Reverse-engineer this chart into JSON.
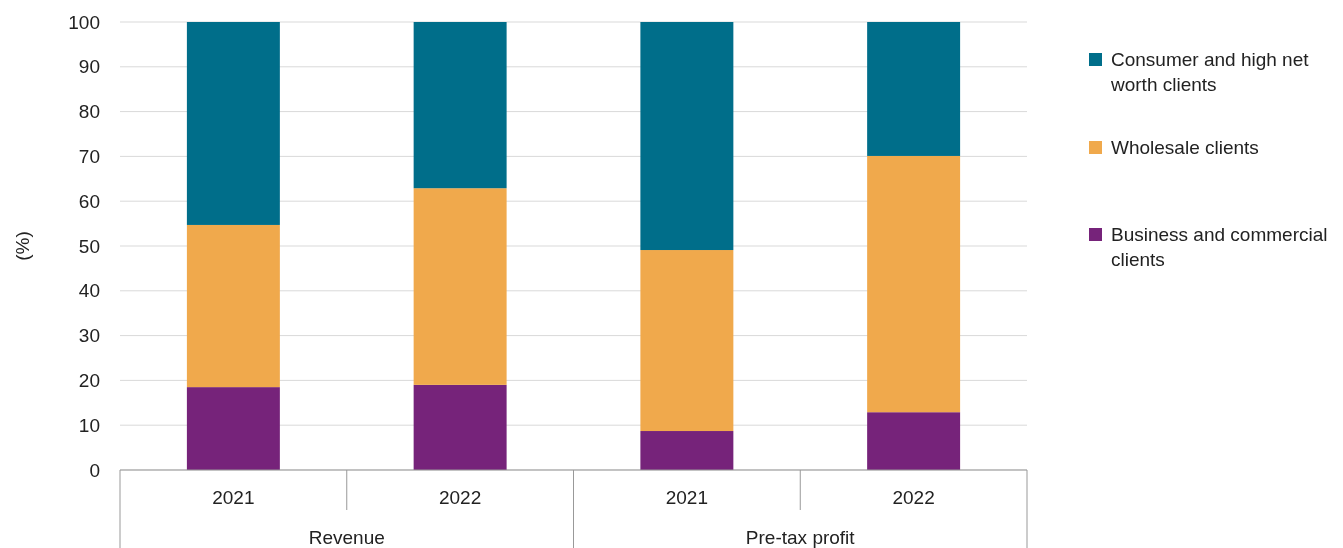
{
  "chart_data": {
    "type": "bar",
    "stacked": true,
    "ylabel": "(%)",
    "categories": [
      "2021",
      "2022",
      "2021",
      "2022"
    ],
    "annotations": [
      "Revenue",
      "Pre-tax profit"
    ],
    "series": [
      {
        "name": "Business and commercial clients",
        "color": "#76237a",
        "values": [
          18.5,
          19,
          8.7,
          12.9
        ]
      },
      {
        "name": "Wholesale clients",
        "color": "#f0a94c",
        "values": [
          36.2,
          43.9,
          40.4,
          57.2
        ]
      },
      {
        "name": "Consumer and high net worth clients",
        "color": "#006e8a",
        "values": [
          45.3,
          37.1,
          50.9,
          29.9
        ]
      }
    ],
    "ylim": [
      0,
      100
    ],
    "yticks": [
      0,
      10,
      20,
      30,
      40,
      50,
      60,
      70,
      80,
      90,
      100
    ],
    "grid": "y",
    "legend": "right"
  }
}
